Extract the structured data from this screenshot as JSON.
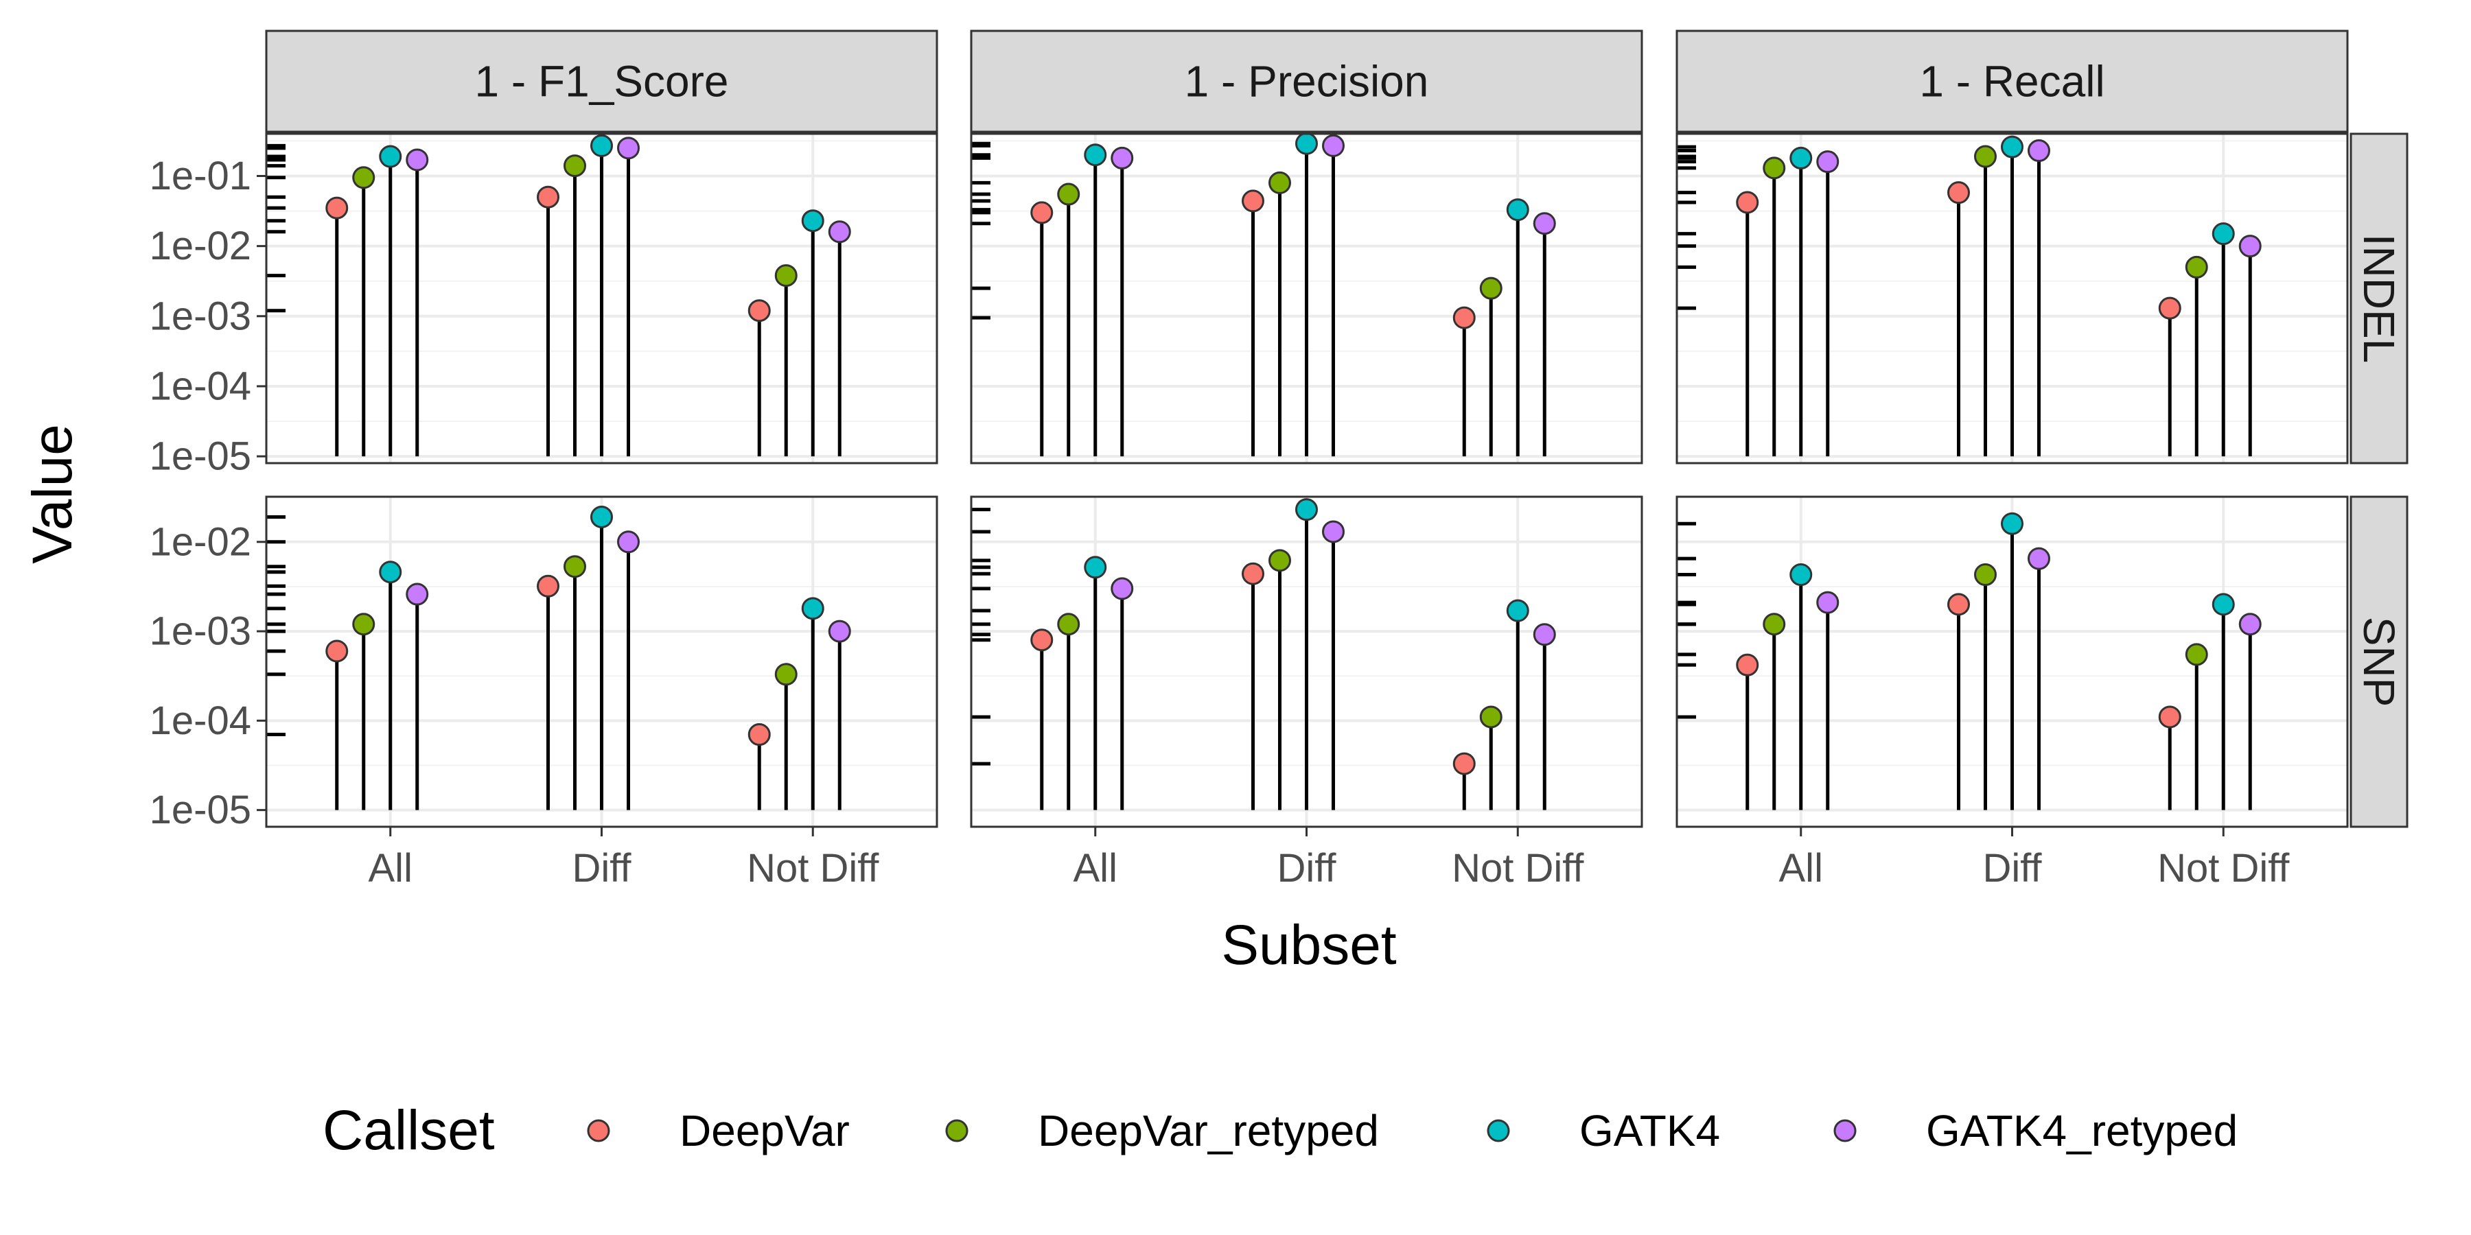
{
  "chart_data": {
    "type": "scatter",
    "subtype": "lollipop, faceted grid, log10 y-axis",
    "xlabel": "Subset",
    "ylabel": "Value",
    "categories": [
      "All",
      "Diff",
      "Not Diff"
    ],
    "facet_columns": [
      "1 - F1_Score",
      "1 - Precision",
      "1 - Recall"
    ],
    "facet_rows": [
      "INDEL",
      "SNP"
    ],
    "y_scale": "log10",
    "lollipop_baseline": 1e-05,
    "grid": true,
    "theme": "bw",
    "legend": {
      "title": "Callset",
      "position": "bottom",
      "entries": [
        "DeepVar",
        "DeepVar_retyped",
        "GATK4",
        "GATK4_retyped"
      ]
    },
    "series_colors": {
      "DeepVar": "#F8766D",
      "DeepVar_retyped": "#7CAE00",
      "GATK4": "#00BFC4",
      "GATK4_retyped": "#C77CFF"
    },
    "rows": [
      {
        "row": "INDEL",
        "ylim": [
          8e-06,
          0.4
        ],
        "y_ticks": [
          "1e-05",
          "1e-04",
          "1e-03",
          "1e-02",
          "1e-01"
        ],
        "y_tick_values": [
          1e-05,
          0.0001,
          0.001,
          0.01,
          0.1
        ]
      },
      {
        "row": "SNP",
        "ylim": [
          6.5e-06,
          0.032
        ],
        "y_ticks": [
          "1e-05",
          "1e-04",
          "1e-03",
          "1e-02"
        ],
        "y_tick_values": [
          1e-05,
          0.0001,
          0.001,
          0.01
        ]
      }
    ],
    "panels": [
      {
        "column": "1 - F1_Score",
        "row": "INDEL",
        "series": [
          {
            "name": "DeepVar",
            "values": [
              0.035,
              0.05,
              0.0012
            ]
          },
          {
            "name": "DeepVar_retyped",
            "values": [
              0.095,
              0.14,
              0.0038
            ]
          },
          {
            "name": "GATK4",
            "values": [
              0.19,
              0.27,
              0.023
            ]
          },
          {
            "name": "GATK4_retyped",
            "values": [
              0.17,
              0.25,
              0.016
            ]
          }
        ]
      },
      {
        "column": "1 - Precision",
        "row": "INDEL",
        "series": [
          {
            "name": "DeepVar",
            "values": [
              0.03,
              0.044,
              0.00095
            ]
          },
          {
            "name": "DeepVar_retyped",
            "values": [
              0.055,
              0.08,
              0.0025
            ]
          },
          {
            "name": "GATK4",
            "values": [
              0.2,
              0.29,
              0.033
            ]
          },
          {
            "name": "GATK4_retyped",
            "values": [
              0.18,
              0.27,
              0.021
            ]
          }
        ]
      },
      {
        "column": "1 - Recall",
        "row": "INDEL",
        "series": [
          {
            "name": "DeepVar",
            "values": [
              0.042,
              0.058,
              0.0013
            ]
          },
          {
            "name": "DeepVar_retyped",
            "values": [
              0.13,
              0.19,
              0.005
            ]
          },
          {
            "name": "GATK4",
            "values": [
              0.18,
              0.26,
              0.015
            ]
          },
          {
            "name": "GATK4_retyped",
            "values": [
              0.16,
              0.23,
              0.01
            ]
          }
        ]
      },
      {
        "column": "1 - F1_Score",
        "row": "SNP",
        "series": [
          {
            "name": "DeepVar",
            "values": [
              0.0006,
              0.0032,
              7e-05
            ]
          },
          {
            "name": "DeepVar_retyped",
            "values": [
              0.0012,
              0.0053,
              0.00033
            ]
          },
          {
            "name": "GATK4",
            "values": [
              0.0046,
              0.019,
              0.0018
            ]
          },
          {
            "name": "GATK4_retyped",
            "values": [
              0.0026,
              0.01,
              0.001
            ]
          }
        ]
      },
      {
        "column": "1 - Precision",
        "row": "SNP",
        "series": [
          {
            "name": "DeepVar",
            "values": [
              0.0008,
              0.0044,
              3.3e-05
            ]
          },
          {
            "name": "DeepVar_retyped",
            "values": [
              0.0012,
              0.0062,
              0.00011
            ]
          },
          {
            "name": "GATK4",
            "values": [
              0.0052,
              0.023,
              0.0017
            ]
          },
          {
            "name": "GATK4_retyped",
            "values": [
              0.003,
              0.013,
              0.00092
            ]
          }
        ]
      },
      {
        "column": "1 - Recall",
        "row": "SNP",
        "series": [
          {
            "name": "DeepVar",
            "values": [
              0.00042,
              0.002,
              0.00011
            ]
          },
          {
            "name": "DeepVar_retyped",
            "values": [
              0.0012,
              0.0043,
              0.00055
            ]
          },
          {
            "name": "GATK4",
            "values": [
              0.0043,
              0.016,
              0.002
            ]
          },
          {
            "name": "GATK4_retyped",
            "values": [
              0.0021,
              0.0065,
              0.0012
            ]
          }
        ]
      }
    ]
  }
}
